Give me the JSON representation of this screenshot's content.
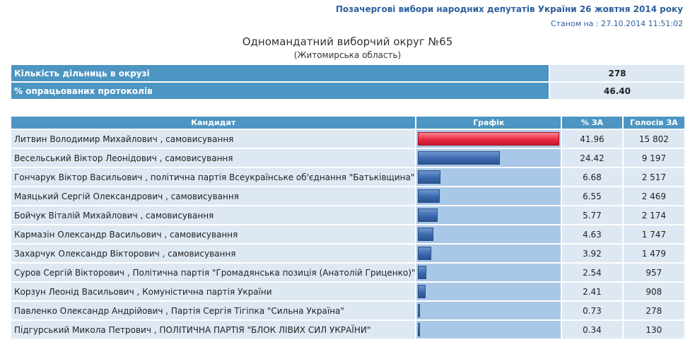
{
  "header": {
    "title": "Позачергові вибори народних депутатів України 26 жовтня 2014 року",
    "date_label": "Станом на : 27.10.2014 11:51:02"
  },
  "district": {
    "title": "Одномандатний виборчий округ №65",
    "region": "(Житомирська область)"
  },
  "stats": [
    {
      "label": "Кількість дільниць в окрузі",
      "value": "278"
    },
    {
      "label": "% опрацьованих протоколів",
      "value": "46.40"
    }
  ],
  "columns": {
    "candidate": "Кандидат",
    "graph": "Графік",
    "percent": "% ЗА",
    "votes": "Голосів ЗА"
  },
  "colors": {
    "leader_bar": "#e8283f",
    "bar": "#3b69b0",
    "header_bg": "#4d95c2"
  },
  "candidates": [
    {
      "name": "Литвин Володимир Михайлович",
      "affiliation": ", самовисування",
      "percent": 41.96,
      "percent_text": "41.96",
      "votes": "15 802"
    },
    {
      "name": "Весельський Віктор Леонідович",
      "affiliation": ", самовисування",
      "percent": 24.42,
      "percent_text": "24.42",
      "votes": "9 197"
    },
    {
      "name": "Гончарук Віктор Васильович",
      "affiliation": ", політична партія Всеукраїнське об'єднання \"Батьківщина\"",
      "percent": 6.68,
      "percent_text": "6.68",
      "votes": "2 517"
    },
    {
      "name": "Маяцький Сергій Олександрович",
      "affiliation": ", самовисування",
      "percent": 6.55,
      "percent_text": "6.55",
      "votes": "2 469"
    },
    {
      "name": "Бойчук Віталій Михайлович",
      "affiliation": ", самовисування",
      "percent": 5.77,
      "percent_text": "5.77",
      "votes": "2 174"
    },
    {
      "name": "Кармазін Олександр Васильович",
      "affiliation": ", самовисування",
      "percent": 4.63,
      "percent_text": "4.63",
      "votes": "1 747"
    },
    {
      "name": "Захарчук Олександр Вікторович",
      "affiliation": ", самовисування",
      "percent": 3.92,
      "percent_text": "3.92",
      "votes": "1 479"
    },
    {
      "name": "Суров Сергій Вікторович",
      "affiliation": ", Політична партія \"Громадянська позиція (Анатолій Гриценко)\"",
      "percent": 2.54,
      "percent_text": "2.54",
      "votes": "957"
    },
    {
      "name": "Корзун Леонід Васильович",
      "affiliation": ", Комуністична партія України",
      "percent": 2.41,
      "percent_text": "2.41",
      "votes": "908"
    },
    {
      "name": "Павленко Олександр Андрійович",
      "affiliation": ", Партія Сергія Тігіпка \"Сильна Україна\"",
      "percent": 0.73,
      "percent_text": "0.73",
      "votes": "278"
    },
    {
      "name": "Підгурський Микола Петрович",
      "affiliation": ", ПОЛІТИЧНА ПАРТІЯ \"БЛОК ЛІВИХ СИЛ УКРАЇНИ\"",
      "percent": 0.34,
      "percent_text": "0.34",
      "votes": "130"
    }
  ]
}
